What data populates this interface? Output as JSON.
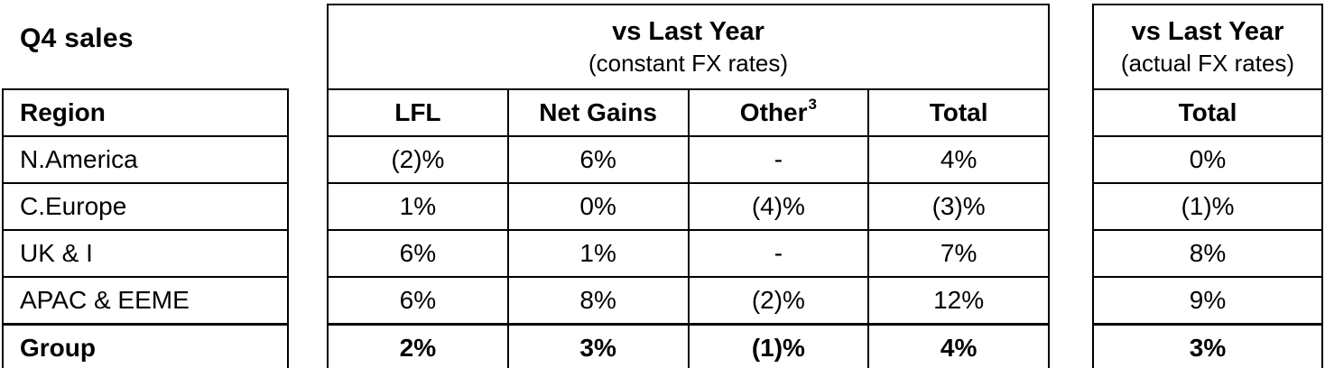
{
  "page": {
    "title": "Q4 sales",
    "background_color": "#ffffff",
    "line_color": "#000000",
    "text_color": "#000000"
  },
  "region_table": {
    "header": "Region",
    "regions": [
      "N.America",
      "C.Europe",
      "UK & I",
      "APAC & EEME"
    ],
    "group_label": "Group"
  },
  "constant_fx_table": {
    "title": "vs Last Year",
    "subtitle": "(constant FX rates)",
    "columns": [
      "LFL",
      "Net Gains",
      "Other",
      "Total"
    ],
    "other_superscript": "3",
    "rows": [
      {
        "lfl": "(2)%",
        "net_gains": "6%",
        "other": "-",
        "total": "4%"
      },
      {
        "lfl": "1%",
        "net_gains": "0%",
        "other": "(4)%",
        "total": "(3)%"
      },
      {
        "lfl": "6%",
        "net_gains": "1%",
        "other": "-",
        "total": "7%"
      },
      {
        "lfl": "6%",
        "net_gains": "8%",
        "other": "(2)%",
        "total": "12%"
      }
    ],
    "group_row": {
      "lfl": "2%",
      "net_gains": "3%",
      "other": "(1)%",
      "total": "4%"
    }
  },
  "actual_fx_table": {
    "title": "vs Last Year",
    "subtitle": "(actual FX rates)",
    "column": "Total",
    "rows": [
      "0%",
      "(1)%",
      "8%",
      "9%"
    ],
    "group_row": "3%"
  }
}
